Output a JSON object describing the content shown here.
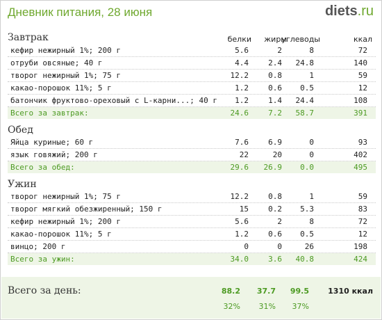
{
  "title": "Дневник питания, 28 июня",
  "logo": {
    "main": "diets",
    "tld": ".ru"
  },
  "columns": [
    "белки",
    "жиры",
    "углеводы",
    "ккал"
  ],
  "meals": [
    {
      "title": "Завтрак",
      "items": [
        {
          "name": "кефир нежирный 1%; 200 г",
          "p": "5.6",
          "f": "2",
          "c": "8",
          "k": "72"
        },
        {
          "name": "отруби овсяные; 40 г",
          "p": "4.4",
          "f": "2.4",
          "c": "24.8",
          "k": "140"
        },
        {
          "name": "творог нежирный 1%; 75 г",
          "p": "12.2",
          "f": "0.8",
          "c": "1",
          "k": "59"
        },
        {
          "name": "какао-порошок 11%; 5 г",
          "p": "1.2",
          "f": "0.6",
          "c": "0.5",
          "k": "12"
        },
        {
          "name": "батончик фруктово-ореховый с L-карни...; 40 г",
          "p": "1.2",
          "f": "1.4",
          "c": "24.4",
          "k": "108"
        }
      ],
      "total": {
        "label": "Всего за завтрак:",
        "p": "24.6",
        "f": "7.2",
        "c": "58.7",
        "k": "391"
      }
    },
    {
      "title": "Обед",
      "items": [
        {
          "name": "Яйца куриные; 60 г",
          "p": "7.6",
          "f": "6.9",
          "c": "0",
          "k": "93"
        },
        {
          "name": "язык говяжий; 200 г",
          "p": "22",
          "f": "20",
          "c": "0",
          "k": "402"
        }
      ],
      "total": {
        "label": "Всего за обед:",
        "p": "29.6",
        "f": "26.9",
        "c": "0.0",
        "k": "495"
      }
    },
    {
      "title": "Ужин",
      "items": [
        {
          "name": "творог нежирный 1%; 75 г",
          "p": "12.2",
          "f": "0.8",
          "c": "1",
          "k": "59"
        },
        {
          "name": "творог мягкий обезжиренный; 150 г",
          "p": "15",
          "f": "0.2",
          "c": "5.3",
          "k": "83"
        },
        {
          "name": "кефир нежирный 1%; 200 г",
          "p": "5.6",
          "f": "2",
          "c": "8",
          "k": "72"
        },
        {
          "name": "какао-порошок 11%; 5 г",
          "p": "1.2",
          "f": "0.6",
          "c": "0.5",
          "k": "12"
        },
        {
          "name": "винцо; 200 г",
          "p": "0",
          "f": "0",
          "c": "26",
          "k": "198"
        }
      ],
      "total": {
        "label": "Всего за ужин:",
        "p": "34.0",
        "f": "3.6",
        "c": "40.8",
        "k": "424"
      }
    }
  ],
  "day": {
    "label": "Всего за день:",
    "p": "88.2",
    "f": "37.7",
    "c": "99.5",
    "k": "1310 ккал",
    "pp": "32%",
    "fp": "31%",
    "cp": "37%"
  },
  "colors": {
    "accent": "#6fa82f",
    "total_text": "#4c9a22",
    "total_bg": "#eef5e6"
  }
}
